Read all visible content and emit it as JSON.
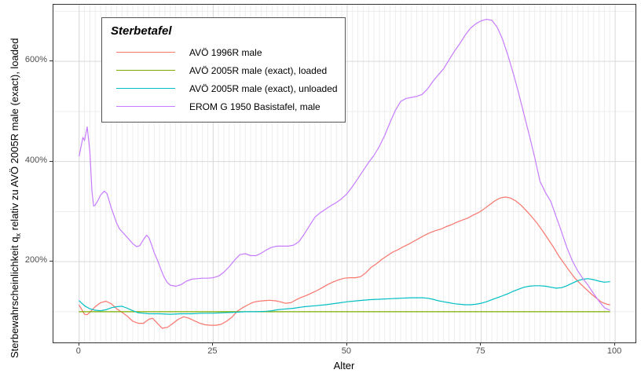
{
  "figure": {
    "x_axis": {
      "title": "Alter",
      "ticks": [
        {
          "v": 0,
          "label": "0"
        },
        {
          "v": 25,
          "label": "25"
        },
        {
          "v": 50,
          "label": "50"
        },
        {
          "v": 75,
          "label": "75"
        },
        {
          "v": 100,
          "label": "100"
        }
      ]
    },
    "y_axis": {
      "title_prefix": "Sterbewahrscheinlichkeit  q",
      "title_sub": "x",
      "title_suffix": " relativ zu AVÖ 2005R male (exact), loaded",
      "ticks": [
        {
          "v": 200,
          "label": "200%"
        },
        {
          "v": 400,
          "label": "400%"
        },
        {
          "v": 600,
          "label": "600%"
        }
      ]
    },
    "legend": {
      "title": "Sterbetafel",
      "entries": [
        {
          "label": "AVÖ 1996R male",
          "color": "#F8766D"
        },
        {
          "label": "AVÖ 2005R male (exact), loaded",
          "color": "#7CAE00"
        },
        {
          "label": "AVÖ 2005R male (exact), unloaded",
          "color": "#00BFC4"
        },
        {
          "label": "EROM G 1950 Basistafel, male",
          "color": "#C77CFF"
        }
      ]
    },
    "colors": {
      "grid_major": "#d9d9d9",
      "grid_minor": "#ededed",
      "panel_border": "#333333",
      "tick_text": "#4d4d4d"
    }
  },
  "chart_data": {
    "type": "line",
    "title": "",
    "xlabel": "Alter",
    "ylabel": "Sterbewahrscheinlichkeit qx relativ zu AVÖ 2005R male (exact), loaded",
    "y_unit": "percent relative to AVÖ 2005R male (exact), loaded",
    "xlim": [
      -4.8,
      103.8
    ],
    "ylim": [
      38.7,
      713.1
    ],
    "x_major_ticks": [
      0,
      25,
      50,
      75,
      100
    ],
    "x_minor_step": 1,
    "x_minor_range": [
      0,
      100
    ],
    "y_major_ticks": [
      200,
      400,
      600
    ],
    "y_minor_ticks": [
      100,
      300,
      500,
      700
    ],
    "grid": true,
    "legend_position": "top-left-inside",
    "series": [
      {
        "name": "AVÖ 1996R male",
        "color": "#F8766D",
        "points": [
          [
            0,
            113
          ],
          [
            1,
            95
          ],
          [
            1.5,
            94
          ],
          [
            2,
            99
          ],
          [
            3,
            110
          ],
          [
            4,
            118
          ],
          [
            5,
            121
          ],
          [
            6,
            116
          ],
          [
            7,
            106
          ],
          [
            8,
            99
          ],
          [
            9,
            91
          ],
          [
            10,
            81
          ],
          [
            11,
            77
          ],
          [
            12,
            77
          ],
          [
            13,
            85
          ],
          [
            13.7,
            87
          ],
          [
            14.5,
            78
          ],
          [
            15.5,
            67
          ],
          [
            16.5,
            69
          ],
          [
            17.5,
            77
          ],
          [
            18.5,
            85
          ],
          [
            19.5,
            90
          ],
          [
            20.5,
            87
          ],
          [
            21.5,
            82
          ],
          [
            22.5,
            77
          ],
          [
            23.5,
            74
          ],
          [
            24.5,
            73
          ],
          [
            25.5,
            73
          ],
          [
            26.5,
            75
          ],
          [
            27.5,
            81
          ],
          [
            28.5,
            89
          ],
          [
            29.5,
            101
          ],
          [
            30.5,
            108
          ],
          [
            31.5,
            114
          ],
          [
            32.5,
            119
          ],
          [
            33.5,
            121
          ],
          [
            34.5,
            122
          ],
          [
            35.5,
            123
          ],
          [
            36.5,
            122
          ],
          [
            37.5,
            120
          ],
          [
            38.5,
            117
          ],
          [
            39.5,
            118
          ],
          [
            40.5,
            124
          ],
          [
            41.5,
            129
          ],
          [
            42.5,
            133
          ],
          [
            43.5,
            138
          ],
          [
            44.5,
            143
          ],
          [
            45.5,
            149
          ],
          [
            46.5,
            155
          ],
          [
            47.5,
            160
          ],
          [
            48.5,
            164
          ],
          [
            49.5,
            167
          ],
          [
            50.5,
            168
          ],
          [
            51.5,
            168
          ],
          [
            52.5,
            170
          ],
          [
            53.5,
            178
          ],
          [
            54.5,
            189
          ],
          [
            55.5,
            196
          ],
          [
            56.5,
            205
          ],
          [
            57.5,
            212
          ],
          [
            58.5,
            219
          ],
          [
            59.5,
            224
          ],
          [
            60.5,
            230
          ],
          [
            61.5,
            235
          ],
          [
            62.5,
            241
          ],
          [
            63.5,
            247
          ],
          [
            64.5,
            253
          ],
          [
            65.5,
            258
          ],
          [
            66.5,
            262
          ],
          [
            67.5,
            265
          ],
          [
            68.5,
            270
          ],
          [
            69.5,
            274
          ],
          [
            70.5,
            279
          ],
          [
            71.5,
            283
          ],
          [
            72.5,
            287
          ],
          [
            73.5,
            293
          ],
          [
            74.5,
            298
          ],
          [
            75.5,
            305
          ],
          [
            76.5,
            313
          ],
          [
            77.5,
            321
          ],
          [
            78.5,
            327
          ],
          [
            79.5,
            329
          ],
          [
            80.5,
            327
          ],
          [
            81.5,
            321
          ],
          [
            82.5,
            312
          ],
          [
            83.5,
            301
          ],
          [
            84.5,
            289
          ],
          [
            85.5,
            276
          ],
          [
            86.5,
            261
          ],
          [
            87.5,
            245
          ],
          [
            88.5,
            229
          ],
          [
            89.5,
            211
          ],
          [
            90.5,
            196
          ],
          [
            91.5,
            181
          ],
          [
            92.5,
            167
          ],
          [
            93.5,
            156
          ],
          [
            94.5,
            146
          ],
          [
            95.5,
            136
          ],
          [
            96.5,
            127
          ],
          [
            97.5,
            119
          ],
          [
            98.5,
            115
          ],
          [
            99,
            114
          ]
        ]
      },
      {
        "name": "AVÖ 2005R male (exact), loaded",
        "color": "#7CAE00",
        "points": [
          [
            0,
            100
          ],
          [
            99,
            100
          ]
        ]
      },
      {
        "name": "AVÖ 2005R male (exact), unloaded",
        "color": "#00BFC4",
        "points": [
          [
            0,
            122
          ],
          [
            1,
            112
          ],
          [
            2,
            106
          ],
          [
            3,
            103
          ],
          [
            4,
            102
          ],
          [
            5,
            104
          ],
          [
            6,
            108
          ],
          [
            7,
            110
          ],
          [
            8,
            111
          ],
          [
            9,
            107
          ],
          [
            10,
            102
          ],
          [
            11,
            98
          ],
          [
            12,
            97
          ],
          [
            13,
            96
          ],
          [
            15,
            96
          ],
          [
            17,
            95
          ],
          [
            19,
            96
          ],
          [
            21,
            96
          ],
          [
            23,
            97
          ],
          [
            25,
            97
          ],
          [
            27,
            98
          ],
          [
            29,
            99
          ],
          [
            31,
            100
          ],
          [
            33,
            100
          ],
          [
            35,
            101
          ],
          [
            36,
            102
          ],
          [
            37,
            104
          ],
          [
            38,
            105
          ],
          [
            40,
            107
          ],
          [
            42,
            110
          ],
          [
            44,
            112
          ],
          [
            46,
            114
          ],
          [
            48,
            117
          ],
          [
            50,
            120
          ],
          [
            52,
            122
          ],
          [
            54,
            124
          ],
          [
            56,
            125
          ],
          [
            58,
            126
          ],
          [
            60,
            127
          ],
          [
            62,
            128
          ],
          [
            64,
            128
          ],
          [
            65,
            127
          ],
          [
            66,
            125
          ],
          [
            67,
            122
          ],
          [
            68,
            120
          ],
          [
            69,
            118
          ],
          [
            70,
            116
          ],
          [
            71,
            115
          ],
          [
            72,
            114
          ],
          [
            73,
            114
          ],
          [
            74,
            115
          ],
          [
            75,
            117
          ],
          [
            76,
            120
          ],
          [
            77,
            124
          ],
          [
            78,
            128
          ],
          [
            79,
            132
          ],
          [
            80,
            136
          ],
          [
            81,
            141
          ],
          [
            82,
            145
          ],
          [
            83,
            149
          ],
          [
            84,
            151
          ],
          [
            85,
            152
          ],
          [
            86,
            152
          ],
          [
            87,
            151
          ],
          [
            88,
            149
          ],
          [
            89,
            147
          ],
          [
            90,
            148
          ],
          [
            91,
            152
          ],
          [
            92,
            157
          ],
          [
            93,
            162
          ],
          [
            94,
            165
          ],
          [
            95,
            166
          ],
          [
            96,
            164
          ],
          [
            97,
            161
          ],
          [
            98,
            159
          ],
          [
            99,
            160
          ]
        ]
      },
      {
        "name": "EROM G 1950 Basistafel, male",
        "color": "#C77CFF",
        "points": [
          [
            0,
            411
          ],
          [
            0.7,
            448
          ],
          [
            1,
            442
          ],
          [
            1.5,
            469
          ],
          [
            2,
            420
          ],
          [
            2.4,
            340
          ],
          [
            2.7,
            311
          ],
          [
            3,
            313
          ],
          [
            3.5,
            322
          ],
          [
            4,
            333
          ],
          [
            4.7,
            341
          ],
          [
            5.2,
            336
          ],
          [
            6,
            307
          ],
          [
            6.5,
            292
          ],
          [
            7,
            277
          ],
          [
            7.5,
            266
          ],
          [
            8,
            260
          ],
          [
            9,
            248
          ],
          [
            10,
            236
          ],
          [
            10.7,
            230
          ],
          [
            11.3,
            232
          ],
          [
            12,
            244
          ],
          [
            12.6,
            253
          ],
          [
            13,
            248
          ],
          [
            13.5,
            234
          ],
          [
            14,
            218
          ],
          [
            14.6,
            203
          ],
          [
            15.2,
            186
          ],
          [
            15.8,
            170
          ],
          [
            16.4,
            159
          ],
          [
            17,
            153
          ],
          [
            18,
            151
          ],
          [
            19,
            154
          ],
          [
            20,
            161
          ],
          [
            21,
            165
          ],
          [
            22,
            166
          ],
          [
            23,
            167
          ],
          [
            24,
            167
          ],
          [
            25,
            168
          ],
          [
            26,
            171
          ],
          [
            27,
            179
          ],
          [
            28,
            190
          ],
          [
            29,
            203
          ],
          [
            30,
            214
          ],
          [
            31,
            216
          ],
          [
            32,
            212
          ],
          [
            33,
            212
          ],
          [
            34,
            217
          ],
          [
            35,
            224
          ],
          [
            36,
            229
          ],
          [
            37,
            231
          ],
          [
            38,
            231
          ],
          [
            39,
            231
          ],
          [
            40,
            233
          ],
          [
            41,
            240
          ],
          [
            42,
            255
          ],
          [
            43,
            272
          ],
          [
            44,
            289
          ],
          [
            45,
            298
          ],
          [
            46,
            305
          ],
          [
            47,
            312
          ],
          [
            48,
            318
          ],
          [
            49,
            326
          ],
          [
            50,
            336
          ],
          [
            51,
            350
          ],
          [
            52,
            366
          ],
          [
            53,
            382
          ],
          [
            54,
            398
          ],
          [
            55,
            412
          ],
          [
            56,
            430
          ],
          [
            57,
            452
          ],
          [
            58,
            478
          ],
          [
            59,
            502
          ],
          [
            60,
            520
          ],
          [
            61,
            526
          ],
          [
            62,
            528
          ],
          [
            63,
            530
          ],
          [
            64,
            534
          ],
          [
            65,
            545
          ],
          [
            66,
            560
          ],
          [
            67,
            573
          ],
          [
            68,
            585
          ],
          [
            69,
            603
          ],
          [
            70,
            620
          ],
          [
            71,
            635
          ],
          [
            72,
            652
          ],
          [
            73,
            666
          ],
          [
            74,
            675
          ],
          [
            75,
            681
          ],
          [
            76,
            684
          ],
          [
            77,
            682
          ],
          [
            78,
            668
          ],
          [
            79,
            644
          ],
          [
            80,
            612
          ],
          [
            81,
            576
          ],
          [
            82,
            536
          ],
          [
            83,
            494
          ],
          [
            84,
            452
          ],
          [
            85,
            408
          ],
          [
            86,
            360
          ],
          [
            87,
            338
          ],
          [
            88,
            320
          ],
          [
            89,
            290
          ],
          [
            90,
            260
          ],
          [
            91,
            228
          ],
          [
            92,
            202
          ],
          [
            93,
            182
          ],
          [
            94,
            166
          ],
          [
            95,
            152
          ],
          [
            96,
            136
          ],
          [
            97,
            121
          ],
          [
            98,
            108
          ],
          [
            99,
            103
          ]
        ]
      }
    ]
  }
}
